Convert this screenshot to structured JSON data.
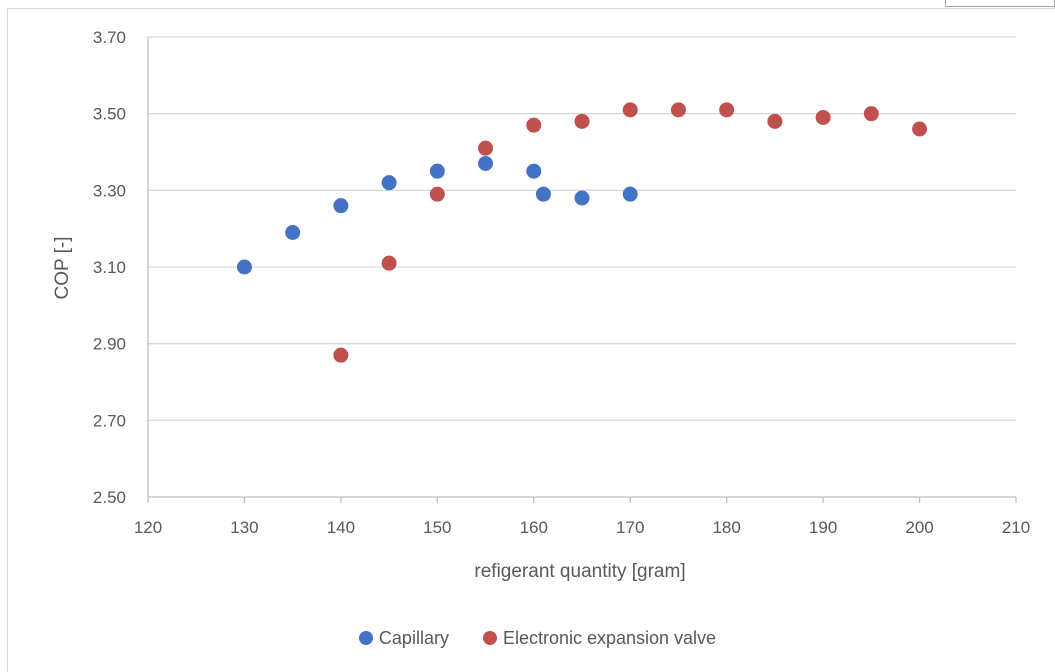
{
  "chart_data": {
    "type": "scatter",
    "title": "",
    "xlabel": "refigerant quantity [gram]",
    "ylabel": "COP [-]",
    "xlim": [
      120,
      210
    ],
    "ylim": [
      2.5,
      3.7
    ],
    "x_ticks": [
      "120",
      "130",
      "140",
      "150",
      "160",
      "170",
      "180",
      "190",
      "200",
      "210"
    ],
    "y_ticks": [
      "2.50",
      "2.70",
      "2.90",
      "3.10",
      "3.30",
      "3.50",
      "3.70"
    ],
    "grid": "horizontal",
    "legend_position": "bottom",
    "series": [
      {
        "name": "Capillary",
        "color": "#4472c4",
        "points": [
          {
            "x": 130,
            "y": 3.1
          },
          {
            "x": 135,
            "y": 3.19
          },
          {
            "x": 140,
            "y": 3.26
          },
          {
            "x": 145,
            "y": 3.32
          },
          {
            "x": 150,
            "y": 3.35
          },
          {
            "x": 155,
            "y": 3.37
          },
          {
            "x": 160,
            "y": 3.35
          },
          {
            "x": 161,
            "y": 3.29
          },
          {
            "x": 165,
            "y": 3.28
          },
          {
            "x": 170,
            "y": 3.29
          }
        ]
      },
      {
        "name": "Electronic expansion valve",
        "color": "#c0504d",
        "points": [
          {
            "x": 140,
            "y": 2.87
          },
          {
            "x": 145,
            "y": 3.11
          },
          {
            "x": 150,
            "y": 3.29
          },
          {
            "x": 155,
            "y": 3.41
          },
          {
            "x": 160,
            "y": 3.47
          },
          {
            "x": 165,
            "y": 3.48
          },
          {
            "x": 170,
            "y": 3.51
          },
          {
            "x": 175,
            "y": 3.51
          },
          {
            "x": 180,
            "y": 3.51
          },
          {
            "x": 185,
            "y": 3.48
          },
          {
            "x": 190,
            "y": 3.49
          },
          {
            "x": 195,
            "y": 3.5
          },
          {
            "x": 200,
            "y": 3.46
          }
        ]
      }
    ]
  },
  "colors": {
    "gridline": "#d9d9d9",
    "axis_line": "#bfbfbf",
    "text": "#595959"
  }
}
